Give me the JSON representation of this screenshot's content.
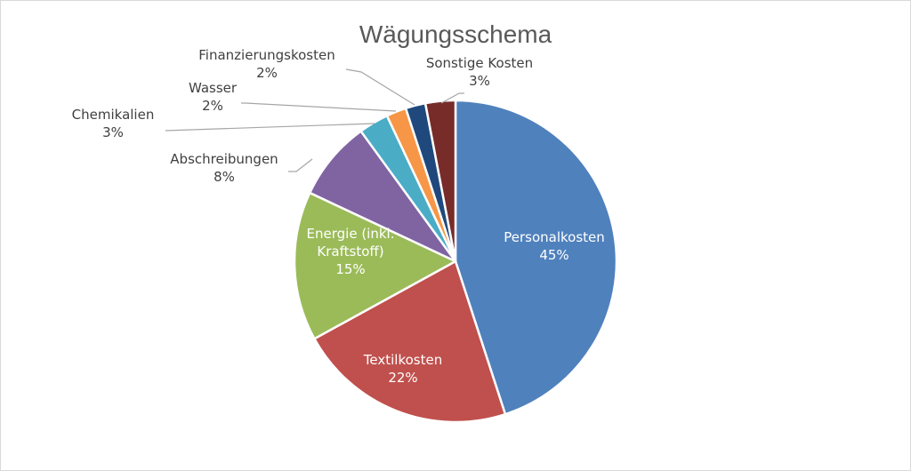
{
  "chart_data": {
    "type": "pie",
    "title": "Wägungsschema",
    "slices": [
      {
        "label": "Personalkosten",
        "value": 45,
        "pct": "45%",
        "color": "#4F81BD"
      },
      {
        "label": "Textilkosten",
        "value": 22,
        "pct": "22%",
        "color": "#C0504D"
      },
      {
        "label": "Energie (inkl. Kraftstoff)",
        "label_lines": [
          "Energie (inkl.",
          "Kraftstoff)"
        ],
        "value": 15,
        "pct": "15%",
        "color": "#9BBB59"
      },
      {
        "label": "Abschreibungen",
        "value": 8,
        "pct": "8%",
        "color": "#8064A2"
      },
      {
        "label": "Chemikalien",
        "value": 3,
        "pct": "3%",
        "color": "#4BACC6"
      },
      {
        "label": "Wasser",
        "value": 2,
        "pct": "2%",
        "color": "#F79646"
      },
      {
        "label": "Finanzierungskosten",
        "value": 2,
        "pct": "2%",
        "color": "#1F497D"
      },
      {
        "label": "Sonstige Kosten",
        "value": 3,
        "pct": "3%",
        "color": "#772C2A"
      }
    ],
    "legend": "none"
  }
}
